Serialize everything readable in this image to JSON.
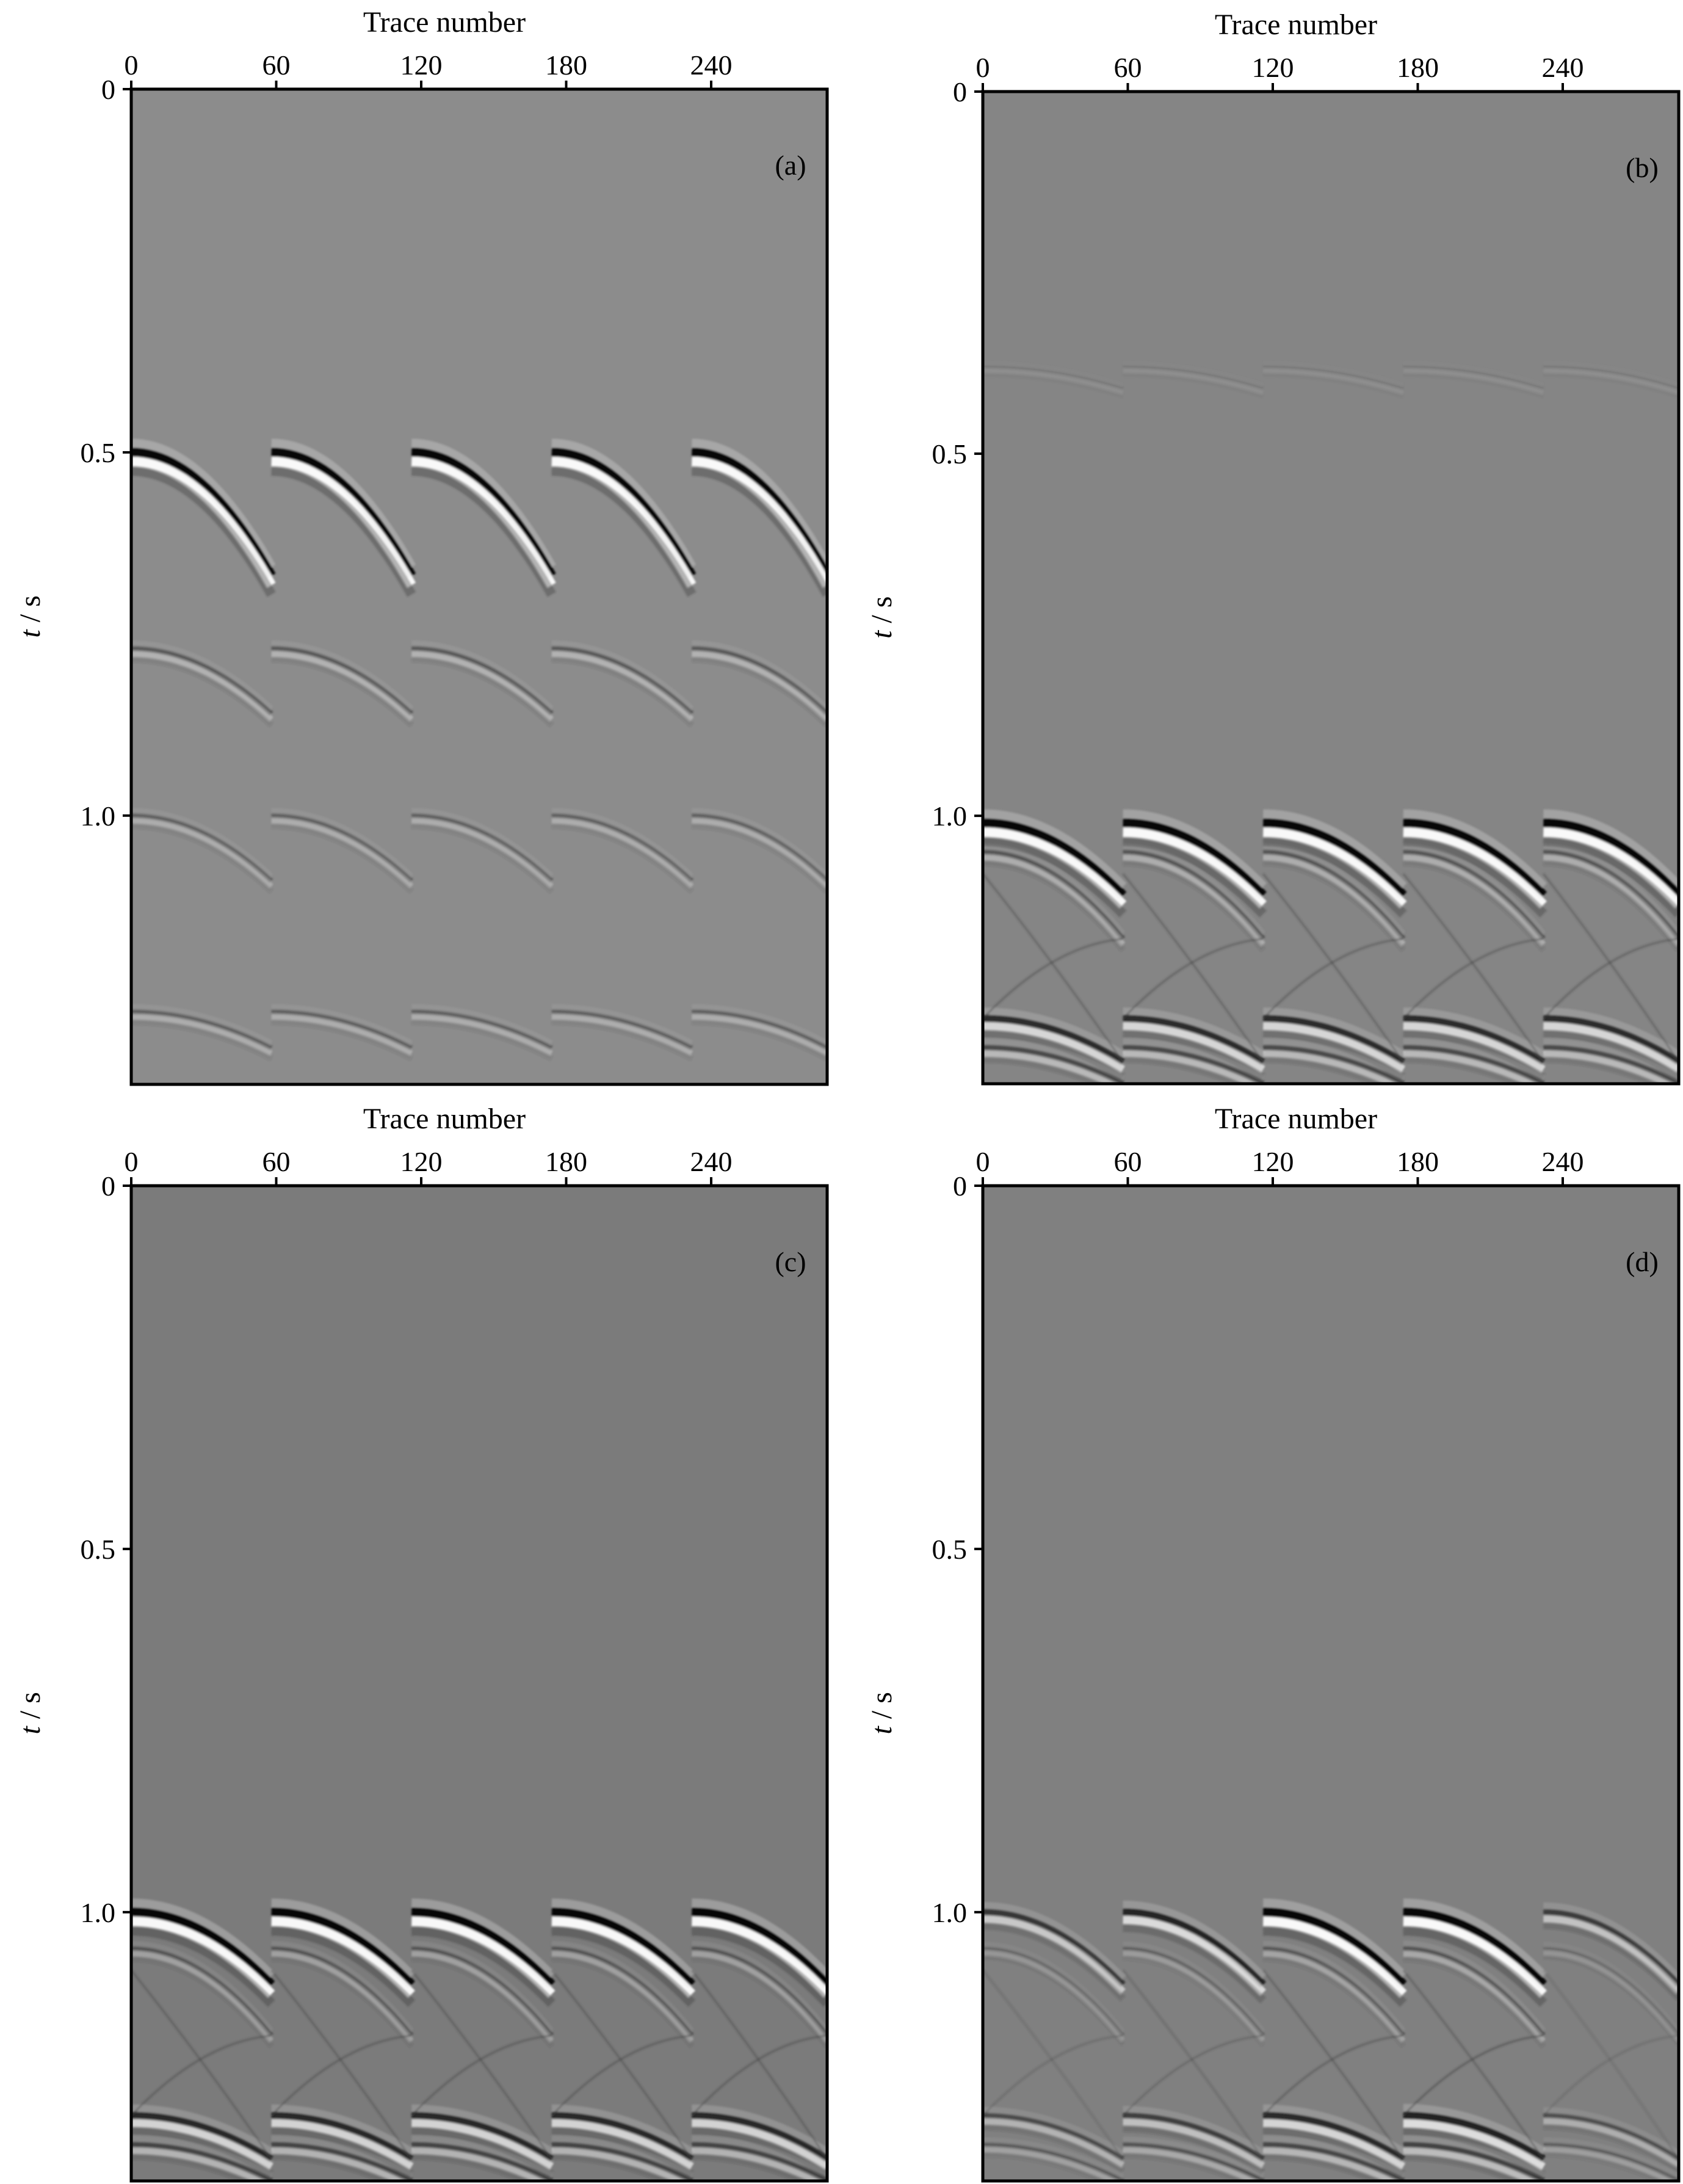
{
  "figure": {
    "panels": [
      {
        "label": "(a)",
        "xlabel": "Trace number",
        "ylabel_italic": "t",
        "ylabel_unit": " / s",
        "background": "#8c8c8c",
        "chart_data": {
          "type": "heatmap",
          "x_ticks": [
            0,
            60,
            120,
            180,
            240
          ],
          "y_ticks": [
            0,
            0.5,
            1.0
          ],
          "x_tick_labels": [
            "0",
            "60",
            "120",
            "180",
            "240"
          ],
          "y_tick_labels": [
            "0",
            "0.5",
            "1.0"
          ],
          "xlim": [
            0,
            288
          ],
          "ylim": [
            0,
            1.37
          ],
          "gathers": [
            {
              "start": 0,
              "end": 58
            },
            {
              "start": 58,
              "end": 116
            },
            {
              "start": 116,
              "end": 174
            },
            {
              "start": 174,
              "end": 232
            },
            {
              "start": 232,
              "end": 288
            }
          ],
          "events": [
            {
              "t0": 0.5,
              "dt": 0.17,
              "amp": 1.0
            },
            {
              "t0": 0.77,
              "dt": 0.09,
              "amp": 0.35
            },
            {
              "t0": 1.0,
              "dt": 0.09,
              "amp": 0.3
            },
            {
              "t0": 1.27,
              "dt": 0.05,
              "amp": 0.3
            }
          ],
          "crossing": false
        }
      },
      {
        "label": "(b)",
        "xlabel": "Trace number",
        "ylabel_italic": "t",
        "ylabel_unit": " / s",
        "background": "#858585",
        "chart_data": {
          "type": "heatmap",
          "x_ticks": [
            0,
            60,
            120,
            180,
            240
          ],
          "y_ticks": [
            0,
            0.5,
            1.0
          ],
          "x_tick_labels": [
            "0",
            "60",
            "120",
            "180",
            "240"
          ],
          "y_tick_labels": [
            "0",
            "0.5",
            "1.0"
          ],
          "xlim": [
            0,
            288
          ],
          "ylim": [
            0,
            1.37
          ],
          "gathers": [
            {
              "start": 0,
              "end": 58
            },
            {
              "start": 58,
              "end": 116
            },
            {
              "start": 116,
              "end": 174
            },
            {
              "start": 174,
              "end": 232
            },
            {
              "start": 232,
              "end": 288
            }
          ],
          "events": [
            {
              "t0": 0.38,
              "dt": 0.03,
              "amp": 0.08
            },
            {
              "t0": 1.01,
              "dt": 0.1,
              "amp": 1.0
            },
            {
              "t0": 1.05,
              "dt": 0.12,
              "amp": 0.35
            },
            {
              "t0": 1.28,
              "dt": 0.06,
              "amp": 0.7
            },
            {
              "t0": 1.32,
              "dt": 0.05,
              "amp": 0.45
            }
          ],
          "crossing": true
        }
      },
      {
        "label": "(c)",
        "xlabel": "Trace number",
        "ylabel_italic": "t",
        "ylabel_unit": " / s",
        "background": "#7b7b7b",
        "chart_data": {
          "type": "heatmap",
          "x_ticks": [
            0,
            60,
            120,
            180,
            240
          ],
          "y_ticks": [
            0,
            0.5,
            1.0
          ],
          "x_tick_labels": [
            "0",
            "60",
            "120",
            "180",
            "240"
          ],
          "y_tick_labels": [
            "0",
            "0.5",
            "1.0"
          ],
          "xlim": [
            0,
            288
          ],
          "ylim": [
            0,
            1.37
          ],
          "gathers": [
            {
              "start": 0,
              "end": 58
            },
            {
              "start": 58,
              "end": 116
            },
            {
              "start": 116,
              "end": 174
            },
            {
              "start": 174,
              "end": 232
            },
            {
              "start": 232,
              "end": 288
            }
          ],
          "events": [
            {
              "t0": 1.0,
              "dt": 0.1,
              "amp": 1.0
            },
            {
              "t0": 1.05,
              "dt": 0.12,
              "amp": 0.3
            },
            {
              "t0": 1.28,
              "dt": 0.06,
              "amp": 0.7
            },
            {
              "t0": 1.32,
              "dt": 0.05,
              "amp": 0.45
            }
          ],
          "crossing": true
        }
      },
      {
        "label": "(d)",
        "xlabel": "Trace number",
        "ylabel_italic": "t",
        "ylabel_unit": " / s",
        "background": "#808080",
        "chart_data": {
          "type": "heatmap",
          "x_ticks": [
            0,
            60,
            120,
            180,
            240
          ],
          "y_ticks": [
            0,
            0.5,
            1.0
          ],
          "x_tick_labels": [
            "0",
            "60",
            "120",
            "180",
            "240"
          ],
          "y_tick_labels": [
            "0",
            "0.5",
            "1.0"
          ],
          "xlim": [
            0,
            288
          ],
          "ylim": [
            0,
            1.37
          ],
          "gathers": [
            {
              "start": 0,
              "end": 58,
              "gain": 0.6
            },
            {
              "start": 58,
              "end": 116,
              "gain": 0.75
            },
            {
              "start": 116,
              "end": 174,
              "gain": 1.0
            },
            {
              "start": 174,
              "end": 232,
              "gain": 1.1
            },
            {
              "start": 232,
              "end": 288,
              "gain": 0.55
            }
          ],
          "events": [
            {
              "t0": 1.0,
              "dt": 0.1,
              "amp": 1.0
            },
            {
              "t0": 1.05,
              "dt": 0.12,
              "amp": 0.3
            },
            {
              "t0": 1.28,
              "dt": 0.06,
              "amp": 0.7
            },
            {
              "t0": 1.32,
              "dt": 0.05,
              "amp": 0.45
            }
          ],
          "crossing": true
        }
      }
    ]
  }
}
